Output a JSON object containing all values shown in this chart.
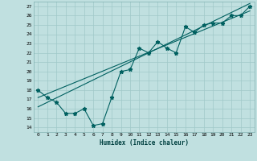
{
  "xlabel": "Humidex (Indice chaleur)",
  "bg_color": "#c0e0e0",
  "grid_color": "#a0c8c8",
  "line_color": "#006060",
  "xlim": [
    -0.5,
    23.5
  ],
  "ylim": [
    13.5,
    27.5
  ],
  "xticks": [
    0,
    1,
    2,
    3,
    4,
    5,
    6,
    7,
    8,
    9,
    10,
    11,
    12,
    13,
    14,
    15,
    16,
    17,
    18,
    19,
    20,
    21,
    22,
    23
  ],
  "yticks": [
    14,
    15,
    16,
    17,
    18,
    19,
    20,
    21,
    22,
    23,
    24,
    25,
    26,
    27
  ],
  "marker_x": [
    0,
    1,
    2,
    3,
    4,
    5,
    6,
    7,
    8,
    9,
    10,
    11,
    12,
    13,
    14,
    15,
    16,
    17,
    18,
    19,
    20,
    21,
    22,
    23
  ],
  "marker_y": [
    18,
    17.2,
    16.7,
    15.5,
    15.5,
    16.0,
    14.2,
    14.4,
    17.2,
    20.0,
    20.2,
    22.5,
    22.0,
    23.2,
    22.5,
    22.0,
    24.8,
    24.2,
    25.0,
    25.2,
    25.2,
    26.0,
    26.0,
    27.0
  ],
  "line1_x": [
    0,
    23
  ],
  "line1_y": [
    17.2,
    26.5
  ],
  "line2_x": [
    0,
    23
  ],
  "line2_y": [
    16.2,
    27.3
  ],
  "marker_size": 3.5,
  "linewidth": 0.8,
  "tick_fontsize": 4.5,
  "xlabel_fontsize": 5.5
}
